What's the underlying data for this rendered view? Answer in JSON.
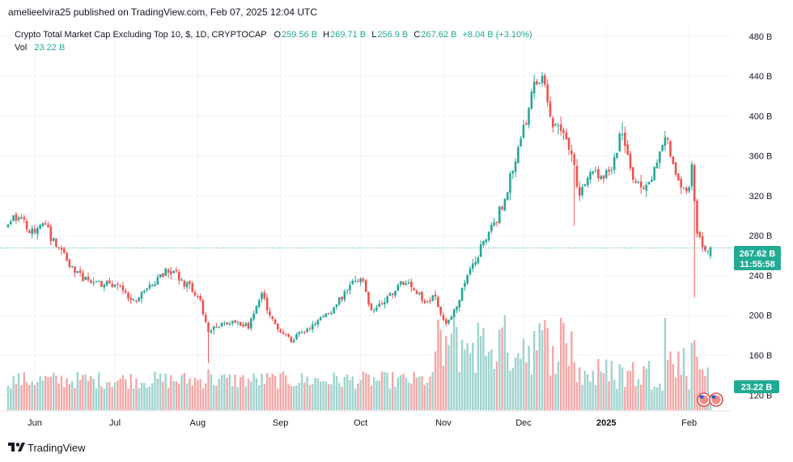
{
  "header": {
    "published": "amelieelvira25 published on TradingView.com, Feb 07, 2025 12:04 UTC"
  },
  "legend": {
    "symbol": "Crypto Total Market Cap Excluding Top 10, $, 1D, CRYPTOCAP",
    "o_label": "O",
    "o_value": "259.56 B",
    "h_label": "H",
    "h_value": "269.71 B",
    "l_label": "L",
    "l_value": "256.9 B",
    "c_label": "C",
    "c_value": "267.62 B",
    "change": "+8.04 B (+3.10%)",
    "vol_label": "Vol",
    "vol_value": "23.22 B"
  },
  "price_badge": {
    "price": "267.62 B",
    "countdown": "11:55:58"
  },
  "volume_badge": "23.22 B",
  "footer": {
    "logo_text": "TradingView"
  },
  "colors": {
    "up": "#26a69a",
    "down": "#ef5350",
    "up_vol": "#9ed3cd",
    "down_vol": "#f5a6a6",
    "grid": "#f0f3fa",
    "axis_text": "#131722",
    "badge": "#22ab94"
  },
  "chart_data": {
    "type": "candlestick",
    "title": "Crypto Total Market Cap Excluding Top 10, $, 1D, CRYPTOCAP",
    "y_unit": "B",
    "ylim": [
      104,
      492
    ],
    "y_ticks": [
      {
        "value": 120,
        "label": "120 B"
      },
      {
        "value": 160,
        "label": "160 B"
      },
      {
        "value": 200,
        "label": "200 B"
      },
      {
        "value": 240,
        "label": "240 B"
      },
      {
        "value": 280,
        "label": "280 B"
      },
      {
        "value": 320,
        "label": "320 B"
      },
      {
        "value": 360,
        "label": "360 B"
      },
      {
        "value": 400,
        "label": "400 B"
      },
      {
        "value": 440,
        "label": "440 B"
      },
      {
        "value": 480,
        "label": "480 B"
      }
    ],
    "x_ticks": [
      {
        "index": 10,
        "label": "Jun",
        "bold": false
      },
      {
        "index": 40,
        "label": "Jul",
        "bold": false
      },
      {
        "index": 71,
        "label": "Aug",
        "bold": false
      },
      {
        "index": 102,
        "label": "Sep",
        "bold": false
      },
      {
        "index": 132,
        "label": "Oct",
        "bold": false
      },
      {
        "index": 163,
        "label": "Nov",
        "bold": false
      },
      {
        "index": 193,
        "label": "Dec",
        "bold": false
      },
      {
        "index": 224,
        "label": "2025",
        "bold": true
      },
      {
        "index": 255,
        "label": "Feb",
        "bold": false
      }
    ],
    "last_close": 267.62,
    "anchors": [
      [
        0,
        296
      ],
      [
        5,
        296
      ],
      [
        8,
        286
      ],
      [
        14,
        290
      ],
      [
        18,
        268
      ],
      [
        24,
        250
      ],
      [
        28,
        236
      ],
      [
        33,
        232
      ],
      [
        38,
        233
      ],
      [
        43,
        228
      ],
      [
        46,
        212
      ],
      [
        50,
        220
      ],
      [
        55,
        232
      ],
      [
        60,
        247
      ],
      [
        64,
        238
      ],
      [
        68,
        228
      ],
      [
        72,
        214
      ],
      [
        75,
        181
      ],
      [
        78,
        190
      ],
      [
        84,
        194
      ],
      [
        90,
        188
      ],
      [
        95,
        220
      ],
      [
        98,
        202
      ],
      [
        102,
        184
      ],
      [
        106,
        176
      ],
      [
        110,
        184
      ],
      [
        116,
        192
      ],
      [
        122,
        208
      ],
      [
        127,
        224
      ],
      [
        130,
        236
      ],
      [
        133,
        232
      ],
      [
        136,
        204
      ],
      [
        140,
        211
      ],
      [
        145,
        226
      ],
      [
        149,
        235
      ],
      [
        153,
        222
      ],
      [
        156,
        215
      ],
      [
        160,
        218
      ],
      [
        163,
        193
      ],
      [
        166,
        196
      ],
      [
        171,
        234
      ],
      [
        175,
        254
      ],
      [
        178,
        276
      ],
      [
        182,
        290
      ],
      [
        186,
        318
      ],
      [
        190,
        358
      ],
      [
        194,
        398
      ],
      [
        197,
        436
      ],
      [
        200,
        440
      ],
      [
        204,
        390
      ],
      [
        208,
        382
      ],
      [
        211,
        360
      ],
      [
        214,
        320
      ],
      [
        218,
        346
      ],
      [
        222,
        334
      ],
      [
        226,
        350
      ],
      [
        230,
        385
      ],
      [
        234,
        341
      ],
      [
        238,
        322
      ],
      [
        242,
        345
      ],
      [
        246,
        383
      ],
      [
        250,
        345
      ],
      [
        254,
        320
      ],
      [
        256,
        348
      ],
      [
        258,
        284
      ],
      [
        261,
        265
      ],
      [
        263,
        268
      ]
    ],
    "notable_wicks": [
      {
        "index": 75,
        "low": 152
      },
      {
        "index": 257,
        "low": 218
      },
      {
        "index": 212,
        "low": 290
      },
      {
        "index": 230,
        "high": 394
      }
    ],
    "volume": {
      "ylim_bottom": 104,
      "scale_note": "volume bars in B, drawn in lower pane",
      "last": 23.22
    }
  }
}
